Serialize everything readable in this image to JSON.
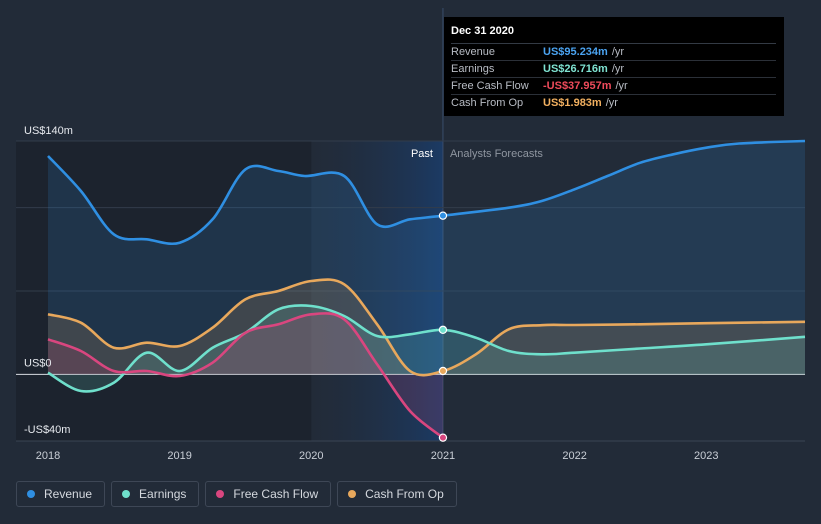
{
  "tooltip": {
    "date": "Dec 31 2020",
    "rows": [
      {
        "name": "Revenue",
        "value": "US$95.234m",
        "unit": "/yr",
        "color": "#4ba3f0"
      },
      {
        "name": "Earnings",
        "value": "US$26.716m",
        "unit": "/yr",
        "color": "#7fe3d2"
      },
      {
        "name": "Free Cash Flow",
        "value": "-US$37.957m",
        "unit": "/yr",
        "color": "#ef4b5b"
      },
      {
        "name": "Cash From Op",
        "value": "US$1.983m",
        "unit": "/yr",
        "color": "#f2b060"
      }
    ]
  },
  "labels": {
    "past": "Past",
    "forecast": "Analysts Forecasts"
  },
  "legend": [
    {
      "name": "Revenue",
      "color": "#2f8fe2"
    },
    {
      "name": "Earnings",
      "color": "#6fe0cc"
    },
    {
      "name": "Free Cash Flow",
      "color": "#d9467f"
    },
    {
      "name": "Cash From Op",
      "color": "#e8a85c"
    }
  ],
  "chart_data": {
    "type": "area",
    "x_tick_labels": [
      "2018",
      "2019",
      "2020",
      "2021",
      "2022",
      "2023"
    ],
    "y_tick_labels": [
      "US$140m",
      "US$0",
      "-US$40m"
    ],
    "ylim": [
      -40,
      140
    ],
    "xlim": [
      2018.0,
      2023.75
    ],
    "divider_x": 2021.0,
    "series": [
      {
        "name": "Revenue",
        "color": "#2f8fe2",
        "points": [
          [
            2018.0,
            131
          ],
          [
            2018.25,
            110
          ],
          [
            2018.5,
            84
          ],
          [
            2018.75,
            81
          ],
          [
            2019.0,
            79
          ],
          [
            2019.25,
            93
          ],
          [
            2019.5,
            123
          ],
          [
            2019.75,
            122
          ],
          [
            2019.95,
            119
          ],
          [
            2020.25,
            119
          ],
          [
            2020.5,
            90
          ],
          [
            2020.75,
            93
          ],
          [
            2021.0,
            95.2
          ],
          [
            2021.5,
            100
          ],
          [
            2021.75,
            104
          ],
          [
            2022.0,
            111
          ],
          [
            2022.25,
            119
          ],
          [
            2022.5,
            127
          ],
          [
            2022.75,
            132
          ],
          [
            2023.0,
            136
          ],
          [
            2023.25,
            138.5
          ],
          [
            2023.75,
            140
          ]
        ]
      },
      {
        "name": "Earnings",
        "color": "#6fe0cc",
        "points": [
          [
            2018.0,
            1
          ],
          [
            2018.25,
            -10
          ],
          [
            2018.5,
            -5
          ],
          [
            2018.75,
            13
          ],
          [
            2019.0,
            2
          ],
          [
            2019.25,
            16
          ],
          [
            2019.5,
            25
          ],
          [
            2019.75,
            39
          ],
          [
            2020.0,
            41
          ],
          [
            2020.25,
            35
          ],
          [
            2020.5,
            23
          ],
          [
            2020.75,
            24
          ],
          [
            2021.0,
            26.7
          ],
          [
            2021.25,
            22
          ],
          [
            2021.5,
            14
          ],
          [
            2021.75,
            12
          ],
          [
            2022.0,
            13
          ],
          [
            2022.5,
            15.5
          ],
          [
            2023.0,
            18
          ],
          [
            2023.75,
            22.5
          ]
        ]
      },
      {
        "name": "Free Cash Flow",
        "color": "#d9467f",
        "points": [
          [
            2018.0,
            21
          ],
          [
            2018.25,
            14
          ],
          [
            2018.5,
            2
          ],
          [
            2018.75,
            2
          ],
          [
            2019.0,
            -1
          ],
          [
            2019.25,
            7
          ],
          [
            2019.5,
            25
          ],
          [
            2019.75,
            30
          ],
          [
            2020.0,
            36
          ],
          [
            2020.25,
            33
          ],
          [
            2020.5,
            6
          ],
          [
            2020.75,
            -22
          ],
          [
            2021.0,
            -38
          ]
        ]
      },
      {
        "name": "Cash From Op",
        "color": "#e8a85c",
        "points": [
          [
            2018.0,
            36
          ],
          [
            2018.25,
            31
          ],
          [
            2018.5,
            16
          ],
          [
            2018.75,
            19
          ],
          [
            2019.0,
            17
          ],
          [
            2019.25,
            28
          ],
          [
            2019.5,
            45
          ],
          [
            2019.75,
            50
          ],
          [
            2020.0,
            56
          ],
          [
            2020.25,
            54
          ],
          [
            2020.5,
            30
          ],
          [
            2020.75,
            2
          ],
          [
            2021.0,
            2
          ],
          [
            2021.25,
            12
          ],
          [
            2021.5,
            27
          ],
          [
            2021.75,
            29.5
          ],
          [
            2022.0,
            29.6
          ],
          [
            2022.5,
            30
          ],
          [
            2023.0,
            30.7
          ],
          [
            2023.75,
            31.5
          ]
        ]
      }
    ]
  }
}
